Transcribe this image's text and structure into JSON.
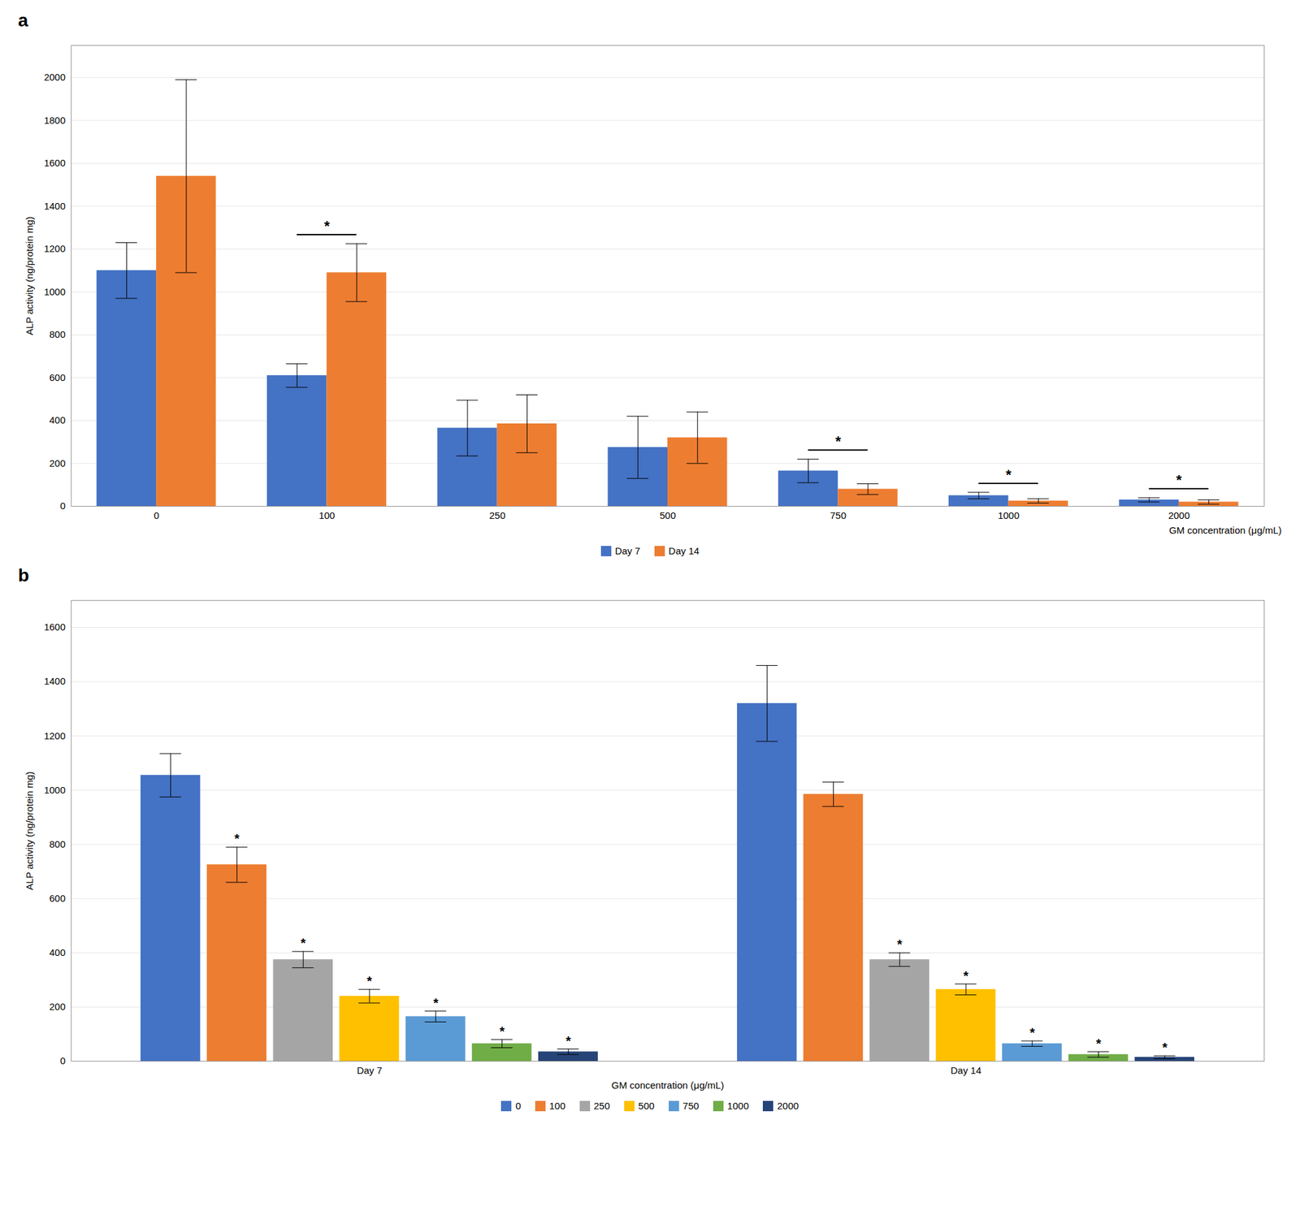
{
  "chart_data": [
    {
      "type": "bar",
      "title": "a",
      "categories": [
        "0",
        "100",
        "250",
        "500",
        "750",
        "1000",
        "2000"
      ],
      "series": [
        {
          "name": "Day 7",
          "color": "#4472C4",
          "values": [
            1100,
            610,
            365,
            275,
            165,
            50,
            30
          ],
          "errors": [
            130,
            55,
            130,
            145,
            55,
            15,
            10
          ]
        },
        {
          "name": "Day 14",
          "color": "#ED7D31",
          "values": [
            1540,
            1090,
            385,
            320,
            80,
            25,
            20
          ],
          "errors": [
            450,
            135,
            135,
            120,
            25,
            10,
            10
          ]
        }
      ],
      "xlabel": "GM concentration (μg/mL)",
      "ylabel": "ALP activity (ng/protein mg)",
      "ylim": [
        0,
        2150
      ],
      "yticks": [
        0,
        200,
        400,
        600,
        800,
        1000,
        1200,
        1400,
        1600,
        1800,
        2000
      ],
      "grid": true,
      "legend": "bottom",
      "annotations": [
        {
          "category": "100",
          "text": "*"
        },
        {
          "category": "750",
          "text": "*"
        },
        {
          "category": "1000",
          "text": "*"
        },
        {
          "category": "2000",
          "text": "*"
        }
      ]
    },
    {
      "type": "bar",
      "title": "b",
      "categories": [
        "Day 7",
        "Day 14"
      ],
      "series": [
        {
          "name": "0",
          "color": "#4472C4",
          "values": [
            1055,
            1320
          ],
          "errors": [
            80,
            140
          ]
        },
        {
          "name": "100",
          "color": "#ED7D31",
          "values": [
            725,
            985
          ],
          "errors": [
            65,
            45
          ]
        },
        {
          "name": "250",
          "color": "#A5A5A5",
          "values": [
            375,
            375
          ],
          "errors": [
            30,
            25
          ]
        },
        {
          "name": "500",
          "color": "#FFC000",
          "values": [
            240,
            265
          ],
          "errors": [
            25,
            20
          ]
        },
        {
          "name": "750",
          "color": "#5B9BD5",
          "values": [
            165,
            65
          ],
          "errors": [
            20,
            10
          ]
        },
        {
          "name": "1000",
          "color": "#70AD47",
          "values": [
            65,
            25
          ],
          "errors": [
            15,
            10
          ]
        },
        {
          "name": "2000",
          "color": "#264478",
          "values": [
            35,
            15
          ],
          "errors": [
            10,
            5
          ]
        }
      ],
      "xlabel": "GM concentration (μg/mL)",
      "ylabel": "ALP activity (ng/protein mg)",
      "ylim": [
        0,
        1700
      ],
      "yticks": [
        0,
        200,
        400,
        600,
        800,
        1000,
        1200,
        1400,
        1600
      ],
      "grid": true,
      "legend": "bottom",
      "annotations": [
        {
          "category": "Day 7",
          "series": "100",
          "text": "*"
        },
        {
          "category": "Day 7",
          "series": "250",
          "text": "*"
        },
        {
          "category": "Day 7",
          "series": "500",
          "text": "*"
        },
        {
          "category": "Day 7",
          "series": "750",
          "text": "*"
        },
        {
          "category": "Day 7",
          "series": "1000",
          "text": "*"
        },
        {
          "category": "Day 7",
          "series": "2000",
          "text": "*"
        },
        {
          "category": "Day 14",
          "series": "250",
          "text": "*"
        },
        {
          "category": "Day 14",
          "series": "500",
          "text": "*"
        },
        {
          "category": "Day 14",
          "series": "750",
          "text": "*"
        },
        {
          "category": "Day 14",
          "series": "1000",
          "text": "*"
        },
        {
          "category": "Day 14",
          "series": "2000",
          "text": "*"
        }
      ]
    }
  ]
}
